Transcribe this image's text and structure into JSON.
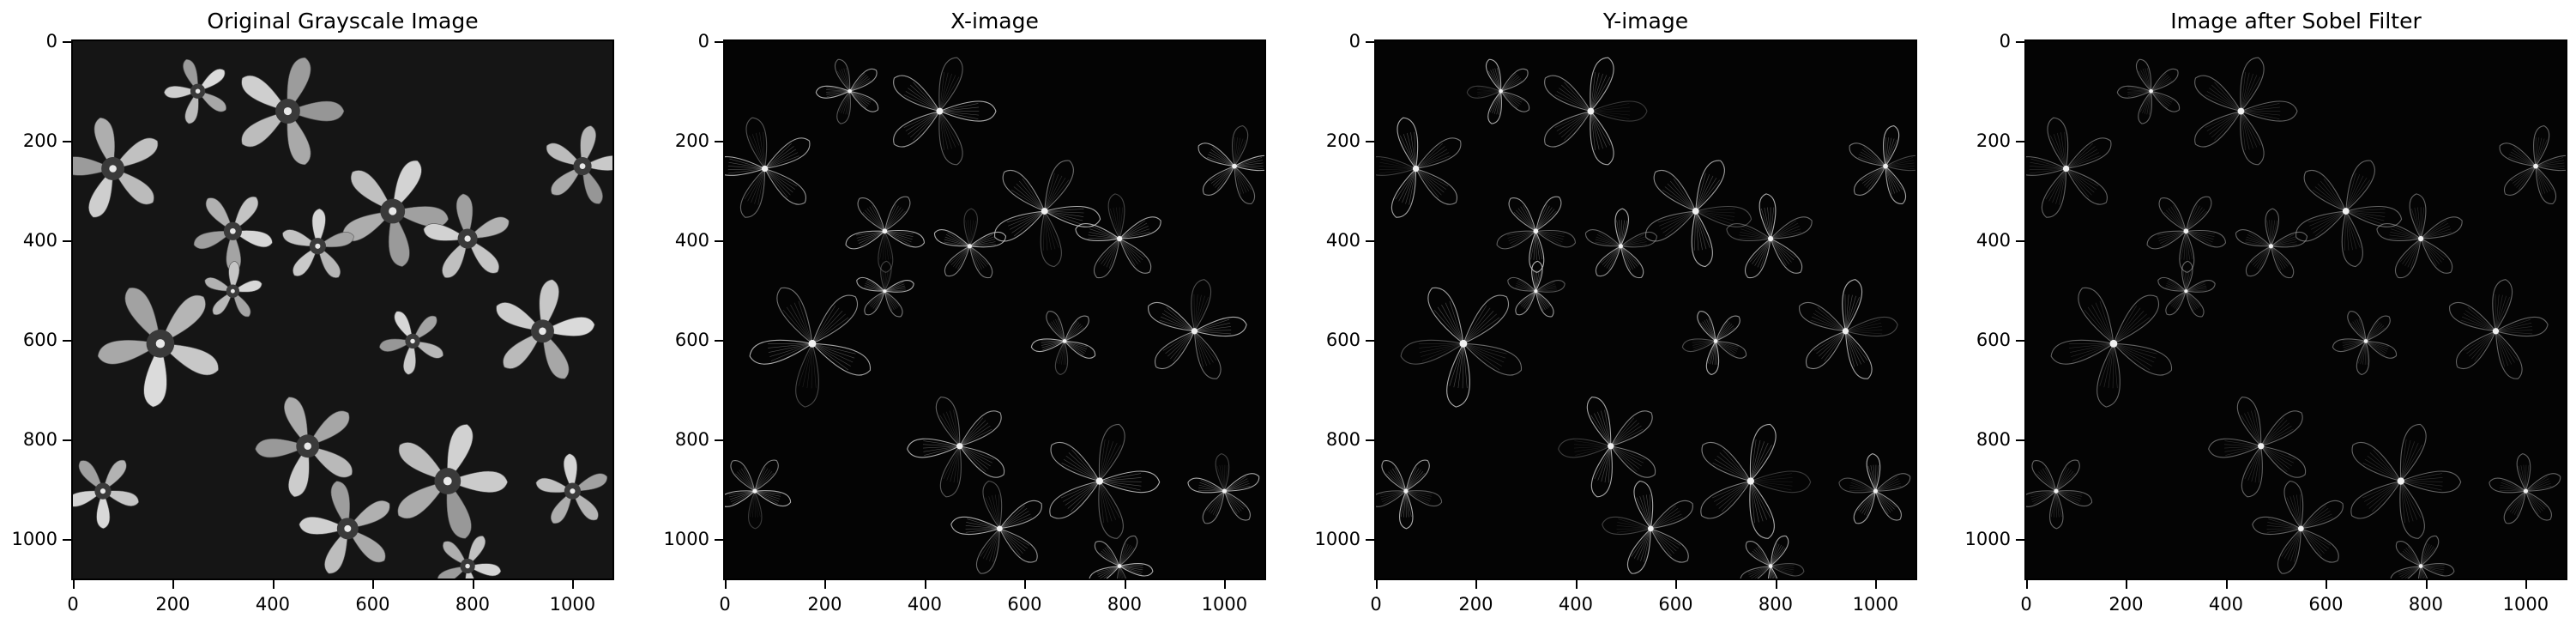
{
  "panels": [
    {
      "title": "Original Grayscale Image",
      "kind": "original"
    },
    {
      "title": "X-image",
      "kind": "x"
    },
    {
      "title": "Y-image",
      "kind": "y"
    },
    {
      "title": "Image after Sobel Filter",
      "kind": "sobel"
    }
  ],
  "axes": {
    "range": [
      0,
      1080
    ],
    "x_ticks": [
      "0",
      "200",
      "400",
      "600",
      "800",
      "1000"
    ],
    "y_ticks": [
      "0",
      "200",
      "400",
      "600",
      "800",
      "1000"
    ],
    "tick_values": [
      0,
      200,
      400,
      600,
      800,
      1000
    ]
  },
  "colors": {
    "original_bg": "#151515",
    "edge_bg": "#040404",
    "petal": "#a9a9a9",
    "edge_line": "#d8d8d8"
  }
}
